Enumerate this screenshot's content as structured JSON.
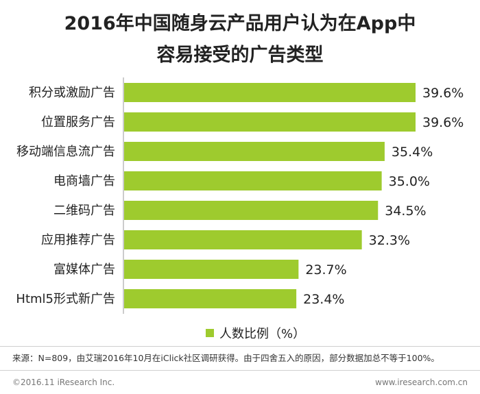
{
  "title_line1": "2016年中国随身云产品用户认为在App中",
  "title_line2": "容易接受的广告类型",
  "legend_label": "人数比例（%）",
  "source_note": "来源：N=809，由艾瑞2016年10月在iClick社区调研获得。由于四舍五入的原因，部分数据加总不等于100%。",
  "copyright": "©2016.11 iResearch Inc.",
  "website": "www.iresearch.com.cn",
  "colors": {
    "bar": "#9ecb2e",
    "axis": "#999999"
  },
  "chart_data": {
    "type": "bar",
    "orientation": "horizontal",
    "categories": [
      "积分或激励广告",
      "位置服务广告",
      "移动端信息流广告",
      "电商墙广告",
      "二维码广告",
      "应用推荐广告",
      "富媒体广告",
      "Html5形式新广告"
    ],
    "series": [
      {
        "name": "人数比例（%）",
        "values": [
          39.6,
          39.6,
          35.4,
          35.0,
          34.5,
          32.3,
          23.7,
          23.4
        ]
      }
    ],
    "value_labels": [
      "39.6%",
      "39.6%",
      "35.4%",
      "35.0%",
      "34.5%",
      "32.3%",
      "23.7%",
      "23.4%"
    ],
    "xlim": [
      0,
      39.6
    ],
    "grid": false,
    "legend_position": "bottom"
  }
}
